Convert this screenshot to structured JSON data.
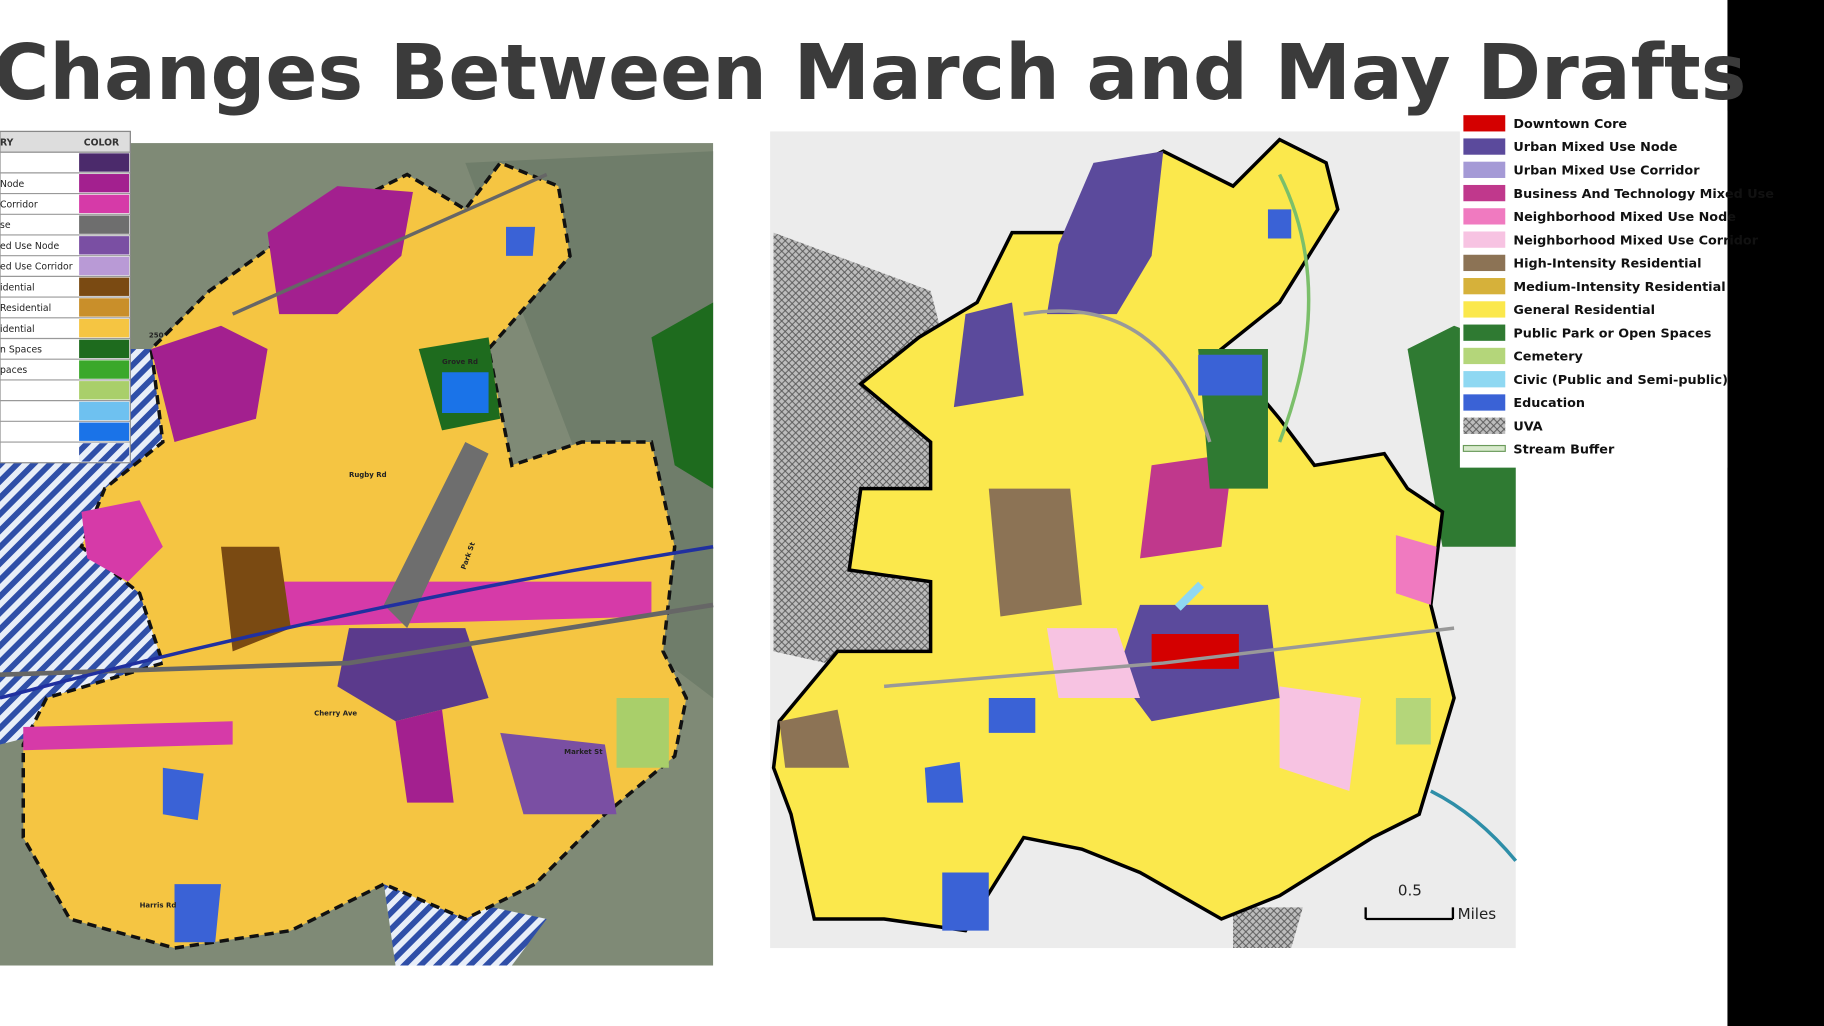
{
  "header": {
    "title": "Changes Between March and May Drafts"
  },
  "left_legend": {
    "headers": [
      "RY",
      "COLOR"
    ],
    "rows": [
      {
        "color": "#4b2a6b"
      },
      {
        "label": "Node",
        "color": "#a3208f"
      },
      {
        "label": "Corridor",
        "color": "#d63aa8"
      },
      {
        "label": "se",
        "color": "#6e6e6e"
      },
      {
        "label": "ed Use Node",
        "color": "#7a4fa3"
      },
      {
        "label": "ed Use Corridor",
        "color": "#b99ad6"
      },
      {
        "label": "idential",
        "color": "#7a4a12"
      },
      {
        "label": "Residential",
        "color": "#c98f2a"
      },
      {
        "label": "idential",
        "color": "#f5c542"
      },
      {
        "label": "n Spaces",
        "color": "#1e6b1e"
      },
      {
        "label": "paces",
        "color": "#3aa82a"
      },
      {
        "color": "#a9cf6a"
      },
      {
        "color": "#6ec1f0"
      },
      {
        "color": "#1a73e8"
      },
      {
        "color": "hatch"
      }
    ]
  },
  "left_map": {
    "streets": [
      "Grove Rd",
      "Rugby Rd",
      "Park St",
      "Cherry Ave",
      "Harris Rd",
      "Market St",
      "250"
    ]
  },
  "right_legend": [
    {
      "label": "Downtown Core",
      "color": "#d40000"
    },
    {
      "label": "Urban Mixed Use Node",
      "color": "#5b4a9c"
    },
    {
      "label": "Urban Mixed Use Corridor",
      "color": "#a59ad6"
    },
    {
      "label": "Business And Technology Mixed Use",
      "color": "#c0388c"
    },
    {
      "label": "Neighborhood Mixed Use Node",
      "color": "#f07ac0"
    },
    {
      "label": "Neighborhood Mixed Use Corridor",
      "color": "#f7c3e2"
    },
    {
      "label": "High-Intensity Residential",
      "color": "#8c7355"
    },
    {
      "label": "Medium-Intensity Residential",
      "color": "#d6b13a"
    },
    {
      "label": "General Residential",
      "color": "#fbe84c"
    },
    {
      "label": "Public Park or Open Spaces",
      "color": "#2f7a32"
    },
    {
      "label": "Cemetery",
      "color": "#b4d67a"
    },
    {
      "label": "Civic (Public and Semi-public)",
      "color": "#8fd8f2"
    },
    {
      "label": "Education",
      "color": "#3a62d6"
    },
    {
      "label": "UVA",
      "color": "cross"
    },
    {
      "label": "Stream Buffer",
      "color": "line"
    }
  ],
  "scale_bar": {
    "distance": "0.5",
    "unit": "Miles"
  }
}
